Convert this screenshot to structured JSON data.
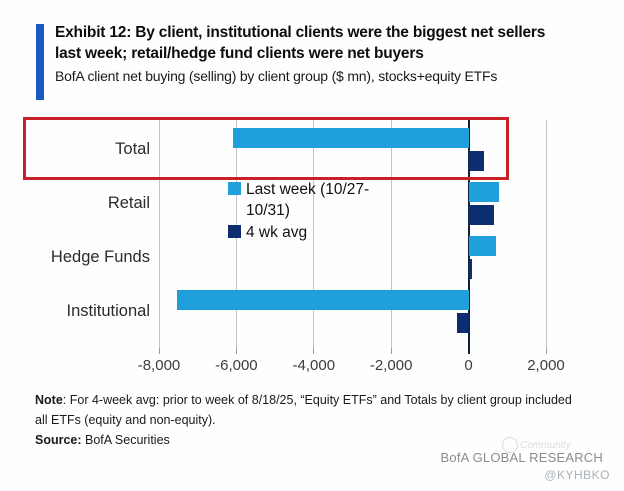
{
  "header": {
    "title_line1": "Exhibit 12: By client, institutional clients were the biggest net sellers",
    "title_line2": "last week; retail/hedge fund clients were net buyers",
    "subtitle": "BofA client net buying (selling) by client group ($ mn), stocks+equity ETFs",
    "accent_color": "#1a5bbf"
  },
  "chart_data": {
    "type": "bar",
    "orientation": "horizontal",
    "categories": [
      "Total",
      "Retail",
      "Hedge Funds",
      "Institutional"
    ],
    "series": [
      {
        "name": "Last week (10/27-10/31)",
        "color": "#1fa0dc",
        "values": [
          -6100,
          780,
          720,
          -7540
        ]
      },
      {
        "name": "4 wk avg",
        "color": "#0c2d6f",
        "values": [
          400,
          650,
          80,
          -290
        ]
      }
    ],
    "xlim": [
      -8000,
      2000
    ],
    "xticks": [
      {
        "label": "-8,000",
        "value": -8000
      },
      {
        "label": "-6,000",
        "value": -6000
      },
      {
        "label": "-4,000",
        "value": -4000
      },
      {
        "label": "-2,000",
        "value": -2000
      },
      {
        "label": "0",
        "value": 0
      },
      {
        "label": "2,000",
        "value": 2000
      }
    ],
    "grid": "vertical",
    "legend_position": "inside-left",
    "highlight": {
      "category": "Total",
      "color": "#c82127"
    }
  },
  "note": {
    "label": "Note",
    "line1_rest": ": For 4-week avg: prior to week of 8/18/25, “Equity ETFs” and Totals by client group included",
    "line2": "all ETFs (equity and non-equity)."
  },
  "source": {
    "label": "Source:",
    "text": " BofA Securities"
  },
  "footer": {
    "brand": "BofA GLOBAL RESEARCH",
    "watermark": "Community",
    "handle": "@KYHBKO"
  },
  "colors": {
    "bar_light_blue": "#1fa0dc",
    "bar_navy": "#0c2d6f",
    "highlight_red": "#c82127",
    "accent_blue": "#1a5bbf",
    "gridline_gray": "#c3c3c3",
    "brand_gray": "#8c8c8c"
  }
}
